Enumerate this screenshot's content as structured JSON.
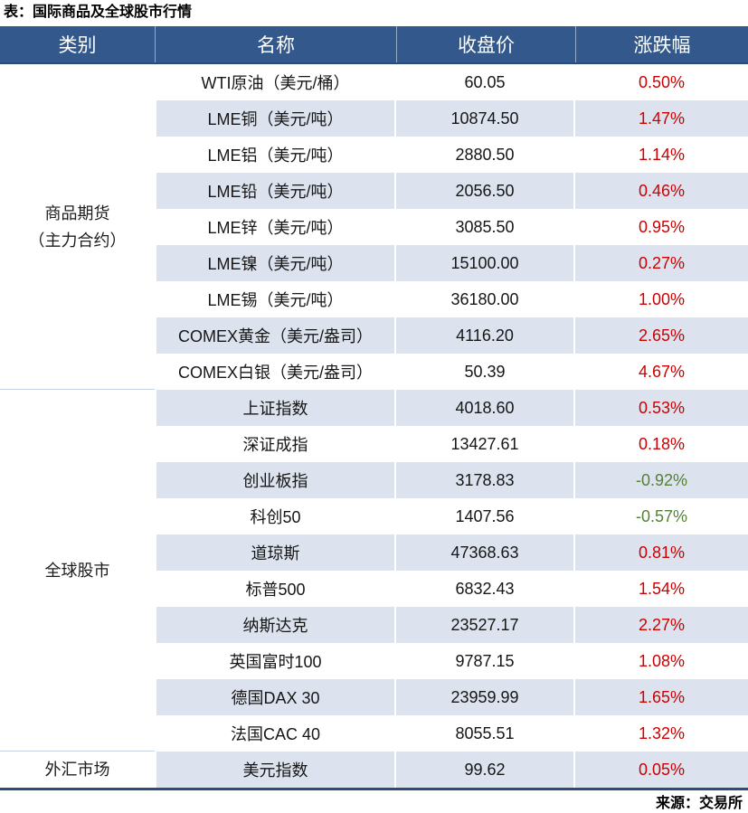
{
  "title": "表：国际商品及全球股市行情",
  "source": "来源：交易所",
  "colors": {
    "header_bg": "#33588b",
    "header_border": "#2b4d77",
    "stripe": "#dce3ef",
    "grid_line": "#c6d3e4",
    "positive": "#cc0000",
    "negative": "#538135"
  },
  "chart_data": {
    "type": "table",
    "title": "表：国际商品及全球股市行情",
    "source": "来源：交易所",
    "columns": [
      "类别",
      "名称",
      "收盘价",
      "涨跌幅"
    ],
    "categories": [
      {
        "label": "商品期货\n（主力合约）",
        "rowspan": 9
      },
      {
        "label": "全球股市",
        "rowspan": 10
      },
      {
        "label": "外汇市场",
        "rowspan": 1
      }
    ],
    "rows": [
      {
        "group": "商品期货（主力合约）",
        "name": "WTI原油（美元/桶）",
        "close": "60.05",
        "change": "0.50%"
      },
      {
        "group": "商品期货（主力合约）",
        "name": "LME铜（美元/吨）",
        "close": "10874.50",
        "change": "1.47%"
      },
      {
        "group": "商品期货（主力合约）",
        "name": "LME铝（美元/吨）",
        "close": "2880.50",
        "change": "1.14%"
      },
      {
        "group": "商品期货（主力合约）",
        "name": "LME铅（美元/吨）",
        "close": "2056.50",
        "change": "0.46%"
      },
      {
        "group": "商品期货（主力合约）",
        "name": "LME锌（美元/吨）",
        "close": "3085.50",
        "change": "0.95%"
      },
      {
        "group": "商品期货（主力合约）",
        "name": "LME镍（美元/吨）",
        "close": "15100.00",
        "change": "0.27%"
      },
      {
        "group": "商品期货（主力合约）",
        "name": "LME锡（美元/吨）",
        "close": "36180.00",
        "change": "1.00%"
      },
      {
        "group": "商品期货（主力合约）",
        "name": "COMEX黄金（美元/盎司）",
        "close": "4116.20",
        "change": "2.65%"
      },
      {
        "group": "商品期货（主力合约）",
        "name": "COMEX白银（美元/盎司）",
        "close": "50.39",
        "change": "4.67%"
      },
      {
        "group": "全球股市",
        "name": "上证指数",
        "close": "4018.60",
        "change": "0.53%"
      },
      {
        "group": "全球股市",
        "name": "深证成指",
        "close": "13427.61",
        "change": "0.18%"
      },
      {
        "group": "全球股市",
        "name": "创业板指",
        "close": "3178.83",
        "change": "-0.92%"
      },
      {
        "group": "全球股市",
        "name": "科创50",
        "close": "1407.56",
        "change": "-0.57%"
      },
      {
        "group": "全球股市",
        "name": "道琼斯",
        "close": "47368.63",
        "change": "0.81%"
      },
      {
        "group": "全球股市",
        "name": "标普500",
        "close": "6832.43",
        "change": "1.54%"
      },
      {
        "group": "全球股市",
        "name": "纳斯达克",
        "close": "23527.17",
        "change": "2.27%"
      },
      {
        "group": "全球股市",
        "name": "英国富时100",
        "close": "9787.15",
        "change": "1.08%"
      },
      {
        "group": "全球股市",
        "name": "德国DAX 30",
        "close": "23959.99",
        "change": "1.65%"
      },
      {
        "group": "全球股市",
        "name": "法国CAC 40",
        "close": "8055.51",
        "change": "1.32%"
      },
      {
        "group": "外汇市场",
        "name": "美元指数",
        "close": "99.62",
        "change": "0.05%"
      }
    ]
  }
}
